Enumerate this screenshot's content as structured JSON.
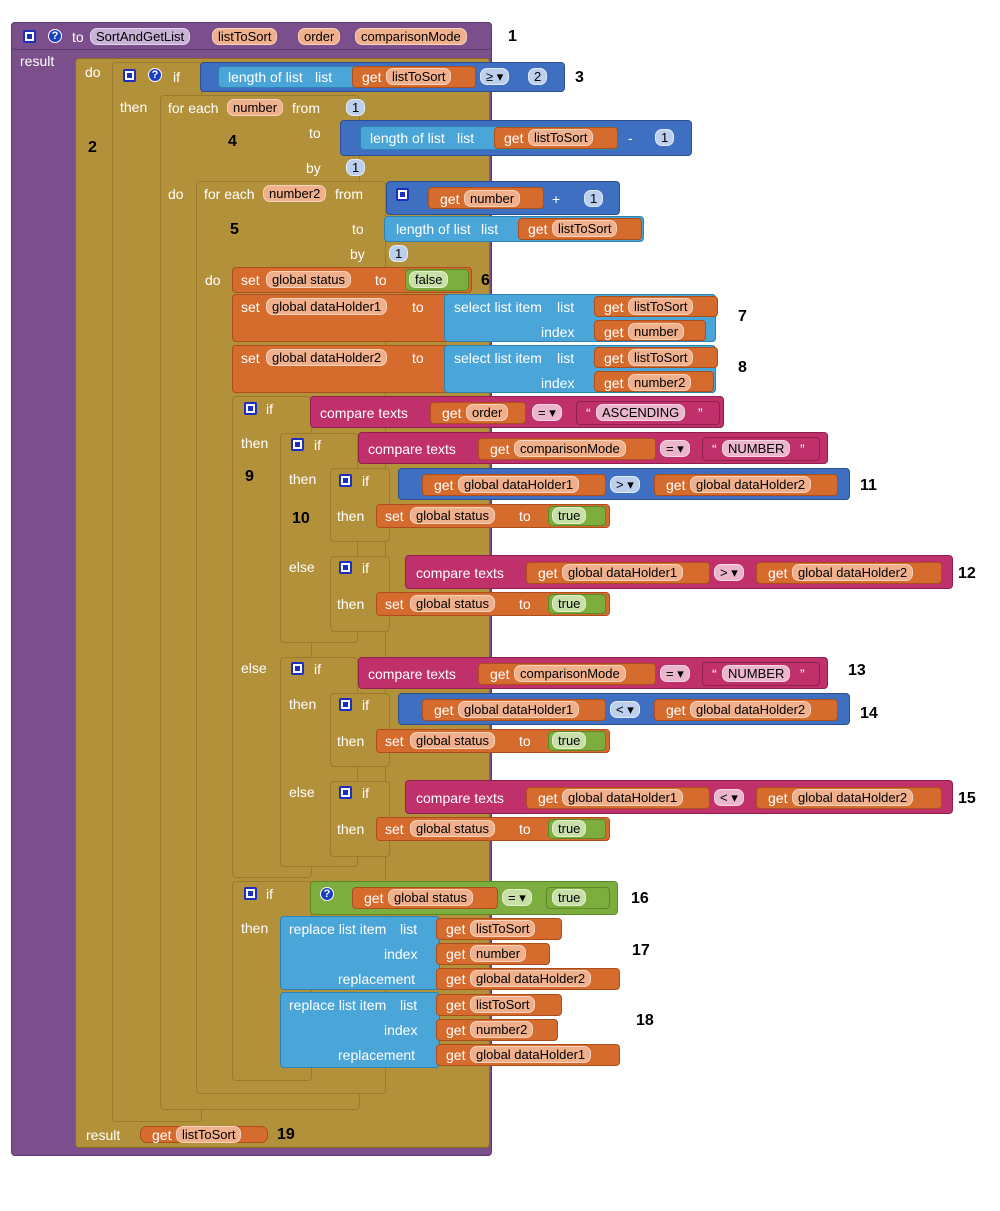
{
  "proc": {
    "to": "to",
    "name": "SortAndGetList",
    "params": [
      "listToSort",
      "order",
      "comparisonMode"
    ],
    "result": "result",
    "qmark": "?"
  },
  "kw": {
    "do": "do",
    "then": "then",
    "else": "else",
    "if": "if",
    "result": "result",
    "from": "from",
    "to": "to",
    "by": "by",
    "for_each": "for each",
    "set": "set",
    "get": "get",
    "length_of_list": "length of list",
    "list": "list",
    "select_list_item": "select list item",
    "index": "index",
    "compare_texts": "compare texts",
    "replace_list_item": "replace list item",
    "replacement": "replacement"
  },
  "vars": {
    "listToSort": "listToSort",
    "number": "number",
    "number2": "number2",
    "order": "order",
    "comparisonMode": "comparisonMode",
    "status": "global status",
    "dh1": "global dataHolder1",
    "dh2": "global dataHolder2"
  },
  "vals": {
    "one": "1",
    "two": "2",
    "false": "false",
    "true": "true",
    "ascending": "ASCENDING",
    "numbertxt": "NUMBER",
    "qopen": "“",
    "qclose": "”"
  },
  "ops": {
    "ge": "≥ ▾",
    "minus": "-",
    "plus": "+",
    "eq": "= ▾",
    "gt": "> ▾",
    "lt": "< ▾"
  },
  "labels": [
    "1",
    "2",
    "3",
    "4",
    "5",
    "6",
    "7",
    "8",
    "9",
    "10",
    "11",
    "12",
    "13",
    "14",
    "15",
    "16",
    "17",
    "18",
    "19"
  ]
}
